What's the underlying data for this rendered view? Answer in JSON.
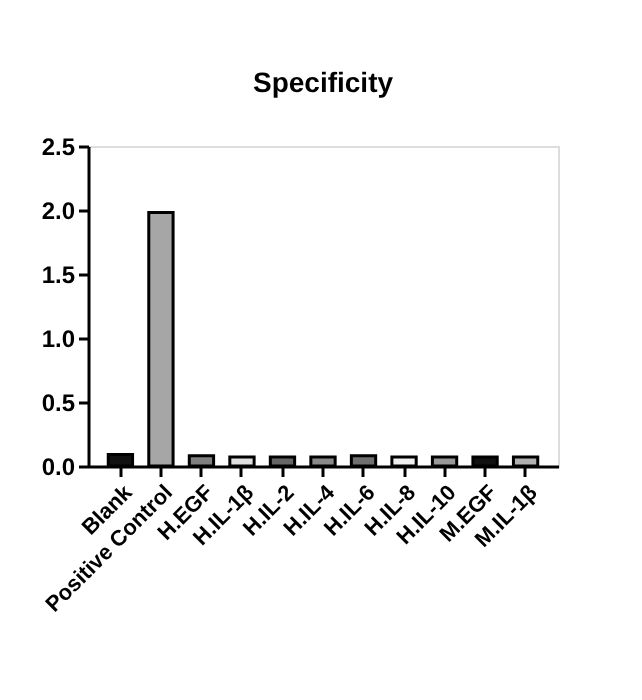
{
  "chart_data": {
    "type": "bar",
    "title": "Specificity",
    "categories": [
      "Blank",
      "Positive Control",
      "H.EGF",
      "H.IL-1β",
      "H.IL-2",
      "H.IL-4",
      "H.IL-6",
      "H.IL-8",
      "H.IL-10",
      "M.EGF",
      "M.IL-1β"
    ],
    "values": [
      0.09,
      1.98,
      0.08,
      0.07,
      0.07,
      0.07,
      0.08,
      0.07,
      0.07,
      0.07,
      0.07
    ],
    "colors": [
      "#111111",
      "#a6a6a6",
      "#808080",
      "#e0e0e0",
      "#666666",
      "#8a8a8a",
      "#707070",
      "#f0f0f0",
      "#999999",
      "#111111",
      "#b0b0b0"
    ],
    "ylim": [
      0,
      2.5
    ],
    "yticks": [
      {
        "value": 0,
        "label": "0.0"
      },
      0.5,
      {
        "value": 1,
        "label": "1.0"
      },
      1.5,
      {
        "value": 2,
        "label": "2.0"
      },
      2.5
    ],
    "grid": false
  }
}
